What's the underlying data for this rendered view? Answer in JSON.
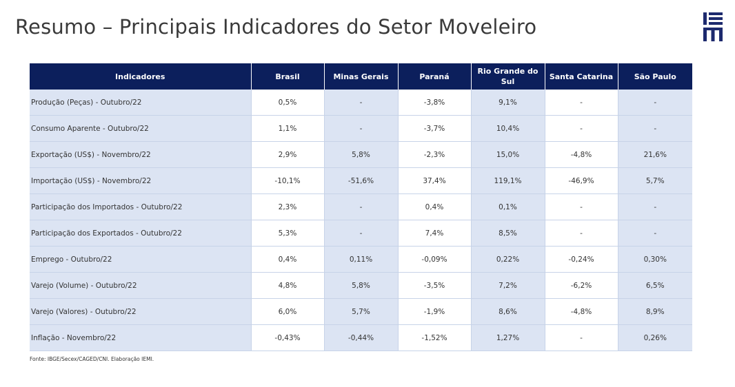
{
  "slide": {
    "title": "Resumo – Principais Indicadores do Setor Moveleiro",
    "logo_text": "IEMI",
    "source": "Fonte: IBGE/Secex/CAGED/CNI. Elaboração IEMI."
  },
  "colors": {
    "header_bg": "#0c1f5c",
    "row_tint": "#dce4f3",
    "logo": "#1d2a6e"
  },
  "table": {
    "headers": [
      "Indicadores",
      "Brasil",
      "Minas Gerais",
      "Paraná",
      "Rio Grande do Sul",
      "Santa Catarina",
      "São Paulo"
    ],
    "rows": [
      {
        "label": "Produção (Peças) - Outubro/22",
        "values": [
          "0,5%",
          "-",
          "-3,8%",
          "9,1%",
          "-",
          "-"
        ]
      },
      {
        "label": "Consumo Aparente - Outubro/22",
        "values": [
          "1,1%",
          "-",
          "-3,7%",
          "10,4%",
          "-",
          "-"
        ]
      },
      {
        "label": "Exportação (US$) - Novembro/22",
        "values": [
          "2,9%",
          "5,8%",
          "-2,3%",
          "15,0%",
          "-4,8%",
          "21,6%"
        ]
      },
      {
        "label": "Importação (US$) - Novembro/22",
        "values": [
          "-10,1%",
          "-51,6%",
          "37,4%",
          "119,1%",
          "-46,9%",
          "5,7%"
        ]
      },
      {
        "label": "Participação dos Importados - Outubro/22",
        "values": [
          "2,3%",
          "-",
          "0,4%",
          "0,1%",
          "-",
          "-"
        ]
      },
      {
        "label": "Participação dos Exportados - Outubro/22",
        "values": [
          "5,3%",
          "-",
          "7,4%",
          "8,5%",
          "-",
          "-"
        ]
      },
      {
        "label": "Emprego - Outubro/22",
        "values": [
          "0,4%",
          "0,11%",
          "-0,09%",
          "0,22%",
          "-0,24%",
          "0,30%"
        ]
      },
      {
        "label": "Varejo (Volume) - Outubro/22",
        "values": [
          "4,8%",
          "5,8%",
          "-3,5%",
          "7,2%",
          "-6,2%",
          "6,5%"
        ]
      },
      {
        "label": "Varejo (Valores) - Outubro/22",
        "values": [
          "6,0%",
          "5,7%",
          "-1,9%",
          "8,6%",
          "-4,8%",
          "8,9%"
        ]
      },
      {
        "label": "Inflação - Novembro/22",
        "values": [
          "-0,43%",
          "-0,44%",
          "-1,52%",
          "1,27%",
          "-",
          "0,26%"
        ]
      }
    ]
  }
}
